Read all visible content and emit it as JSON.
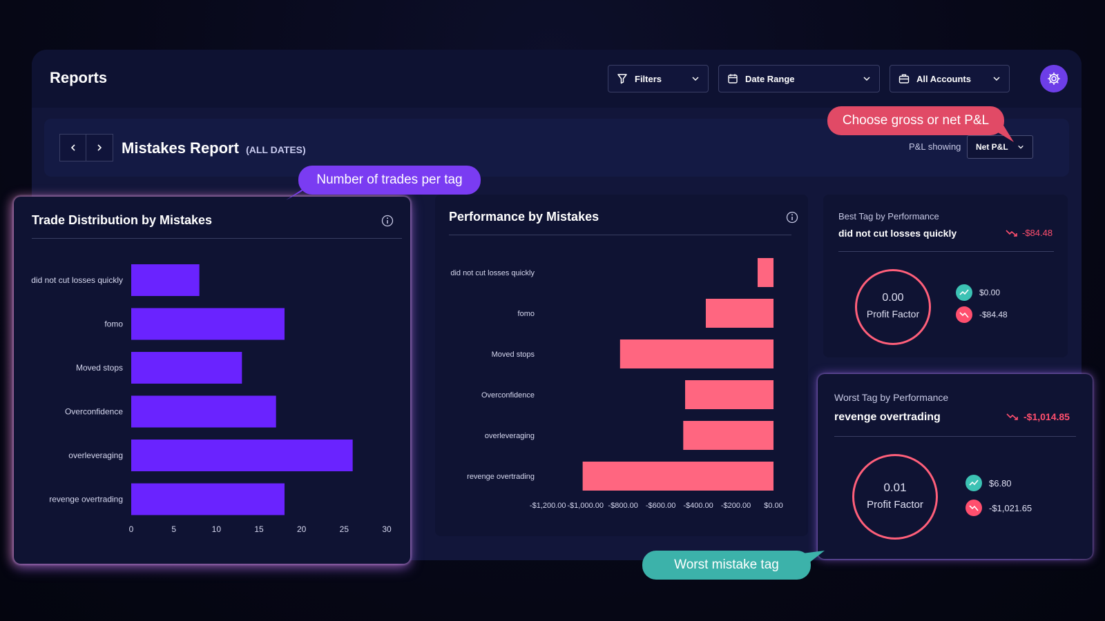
{
  "header": {
    "title": "Reports",
    "filters_label": "Filters",
    "date_range_label": "Date Range",
    "accounts_label": "All Accounts"
  },
  "subbar": {
    "report_title": "Mistakes Report",
    "report_scope": "(ALL DATES)",
    "pl_showing_label": "P&L showing",
    "pl_selected": "Net P&L"
  },
  "callouts": {
    "trades_per_tag": "Number of trades per tag",
    "gross_or_net": "Choose gross or net P&L",
    "worst_tag": "Worst mistake tag"
  },
  "trade_distribution": {
    "title": "Trade Distribution by Mistakes"
  },
  "performance": {
    "title": "Performance by Mistakes"
  },
  "best_tag": {
    "label": "Best Tag by Performance",
    "name": "did not cut losses quickly",
    "pnl": "-$84.48",
    "profit_factor_value": "0.00",
    "profit_factor_label": "Profit Factor",
    "win_amount": "$0.00",
    "loss_amount": "-$84.48"
  },
  "worst_tag": {
    "label": "Worst Tag by Performance",
    "name": "revenge overtrading",
    "pnl": "-$1,014.85",
    "profit_factor_value": "0.01",
    "profit_factor_label": "Profit Factor",
    "win_amount": "$6.80",
    "loss_amount": "-$1,021.65"
  },
  "colors": {
    "bar_purple": "#6a23ff",
    "bar_pink": "#ff6680",
    "teal": "#3cc2b4",
    "red": "#ff4f6e"
  },
  "chart_data": [
    {
      "type": "bar",
      "orientation": "horizontal",
      "title": "Trade Distribution by Mistakes",
      "categories": [
        "did not cut losses quickly",
        "fomo",
        "Moved stops",
        "Overconfidence",
        "overleveraging",
        "revenge overtrading"
      ],
      "values": [
        8,
        18,
        13,
        17,
        26,
        18
      ],
      "xlim": [
        0,
        30
      ],
      "xticks": [
        "0",
        "5",
        "10",
        "15",
        "20",
        "25",
        "30"
      ],
      "grid": false
    },
    {
      "type": "bar",
      "orientation": "horizontal",
      "title": "Performance by Mistakes",
      "categories": [
        "did not cut losses quickly",
        "fomo",
        "Moved stops",
        "Overconfidence",
        "overleveraging",
        "revenge overtrading"
      ],
      "values": [
        -84.48,
        -360,
        -816,
        -470,
        -480,
        -1014.85
      ],
      "xlim": [
        -1300,
        0
      ],
      "xticks": [
        "-$1,200.00",
        "-$1,000.00",
        "-$800.00",
        "-$600.00",
        "-$400.00",
        "-$200.00",
        "$0.00"
      ],
      "xtick_values": [
        -1200,
        -1000,
        -800,
        -600,
        -400,
        -200,
        0
      ],
      "grid": false
    }
  ]
}
